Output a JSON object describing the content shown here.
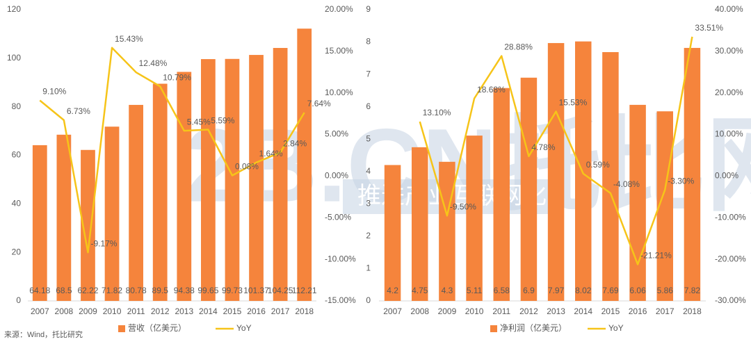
{
  "source": "来源：Wind，托比研究",
  "watermark": {
    "logo": "2B.CN托比网",
    "slogan": "推进产业互联网化"
  },
  "chart_data": [
    {
      "type": "bar",
      "categories": [
        "2007",
        "2008",
        "2009",
        "2010",
        "2011",
        "2012",
        "2013",
        "2014",
        "2015",
        "2016",
        "2017",
        "2018"
      ],
      "ylim": [
        0,
        120
      ],
      "yticks": [
        0,
        20,
        40,
        60,
        80,
        100,
        120
      ],
      "y2lim": [
        -15,
        20
      ],
      "y2ticks": [
        {
          "value": -15,
          "label": "-15.00%"
        },
        {
          "value": -10,
          "label": "-10.00%"
        },
        {
          "value": -5,
          "label": "-5.00%"
        },
        {
          "value": 0,
          "label": "0.00%"
        },
        {
          "value": 5,
          "label": "5.00%"
        },
        {
          "value": 10,
          "label": "10.00%"
        },
        {
          "value": 15,
          "label": "15.00%"
        },
        {
          "value": 20,
          "label": "20.00%"
        }
      ],
      "series": [
        {
          "name": "营收（亿美元）",
          "type": "bar",
          "color": "#f5843c",
          "values": [
            64.18,
            68.5,
            62.22,
            71.82,
            80.78,
            89.5,
            94.38,
            99.65,
            99.73,
            101.37,
            104.25,
            112.21
          ]
        },
        {
          "name": "YoY",
          "type": "line",
          "axis": "y2",
          "color": "#f6c419",
          "values": [
            9.1,
            6.73,
            -9.17,
            15.43,
            12.48,
            10.79,
            5.45,
            5.59,
            0.08,
            1.64,
            2.84,
            7.64
          ],
          "value_labels": [
            "9.10%",
            "6.73%",
            "-9.17%",
            "15.43%",
            "12.48%",
            "10.79%",
            "5.45%",
            "5.59%",
            "0.08%",
            "1.64%",
            "2.84%",
            "7.64%"
          ]
        }
      ]
    },
    {
      "type": "bar",
      "categories": [
        "2007",
        "2008",
        "2009",
        "2010",
        "2011",
        "2012",
        "2013",
        "2014",
        "2015",
        "2016",
        "2017",
        "2018"
      ],
      "ylim": [
        0,
        9
      ],
      "yticks": [
        0,
        1,
        2,
        3,
        4,
        5,
        6,
        7,
        8,
        9
      ],
      "y2lim": [
        -30,
        40
      ],
      "y2ticks": [
        {
          "value": -30,
          "label": "-30.00%"
        },
        {
          "value": -20,
          "label": "-20.00%"
        },
        {
          "value": -10,
          "label": "-10.00%"
        },
        {
          "value": 0,
          "label": "0.00%"
        },
        {
          "value": 10,
          "label": "10.00%"
        },
        {
          "value": 20,
          "label": "20.00%"
        },
        {
          "value": 30,
          "label": "30.00%"
        },
        {
          "value": 40,
          "label": "40.00%"
        }
      ],
      "series": [
        {
          "name": "净利润（亿美元）",
          "type": "bar",
          "color": "#f5843c",
          "values": [
            4.2,
            4.75,
            4.3,
            5.11,
            6.58,
            6.9,
            7.97,
            8.02,
            7.69,
            6.06,
            5.86,
            7.82
          ]
        },
        {
          "name": "YoY",
          "type": "line",
          "axis": "y2",
          "color": "#f6c419",
          "values": [
            null,
            13.1,
            -9.5,
            18.68,
            28.88,
            4.78,
            15.53,
            0.59,
            -4.08,
            -21.21,
            -3.3,
            33.51
          ],
          "value_labels": [
            null,
            "13.10%",
            "-9.50%",
            "18.68%",
            "28.88%",
            "4.78%",
            "15.53%",
            "0.59%",
            "-4.08%",
            "-21.21%",
            "-3.30%",
            "33.51%"
          ]
        }
      ]
    }
  ]
}
